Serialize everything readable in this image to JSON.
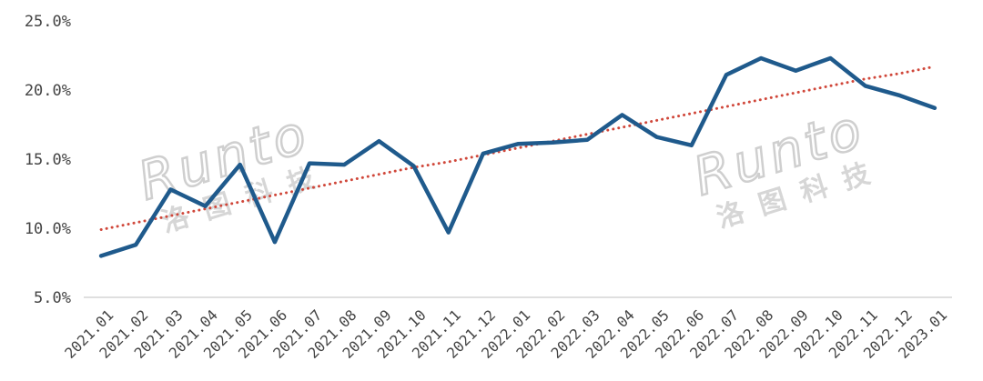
{
  "chart_data": {
    "type": "line",
    "title": "",
    "xlabel": "",
    "ylabel": "",
    "categories": [
      "2021.01",
      "2021.02",
      "2021.03",
      "2021.04",
      "2021.05",
      "2021.06",
      "2021.07",
      "2021.08",
      "2021.09",
      "2021.10",
      "2021.11",
      "2021.12",
      "2022.01",
      "2022.02",
      "2022.03",
      "2022.04",
      "2022.05",
      "2022.06",
      "2022.07",
      "2022.08",
      "2022.09",
      "2022.10",
      "2022.11",
      "2022.12",
      "2023.01"
    ],
    "series": [
      {
        "values": [
          8.0,
          8.8,
          12.8,
          11.6,
          14.6,
          9.0,
          14.7,
          14.6,
          16.3,
          14.5,
          9.7,
          15.4,
          16.1,
          16.2,
          16.4,
          18.2,
          16.6,
          16.0,
          21.1,
          22.3,
          21.4,
          22.3,
          20.3,
          19.6,
          18.7
        ],
        "color": "#1f5a8c"
      },
      {
        "trendline": "linear",
        "values": [
          9.9,
          10.4,
          10.9,
          11.4,
          11.9,
          12.4,
          12.9,
          13.4,
          13.9,
          14.4,
          14.8,
          15.3,
          15.8,
          16.3,
          16.8,
          17.3,
          17.8,
          18.3,
          18.8,
          19.3,
          19.8,
          20.3,
          20.8,
          21.2,
          21.7
        ],
        "color": "#d0473a",
        "style": "dotted"
      }
    ],
    "yticks": [
      "5.0%",
      "10.0%",
      "15.0%",
      "20.0%",
      "25.0%"
    ],
    "ylim": [
      5,
      25
    ],
    "grid": false
  },
  "watermark": {
    "text_en": "Runto",
    "text_zh": "洛图科技"
  }
}
